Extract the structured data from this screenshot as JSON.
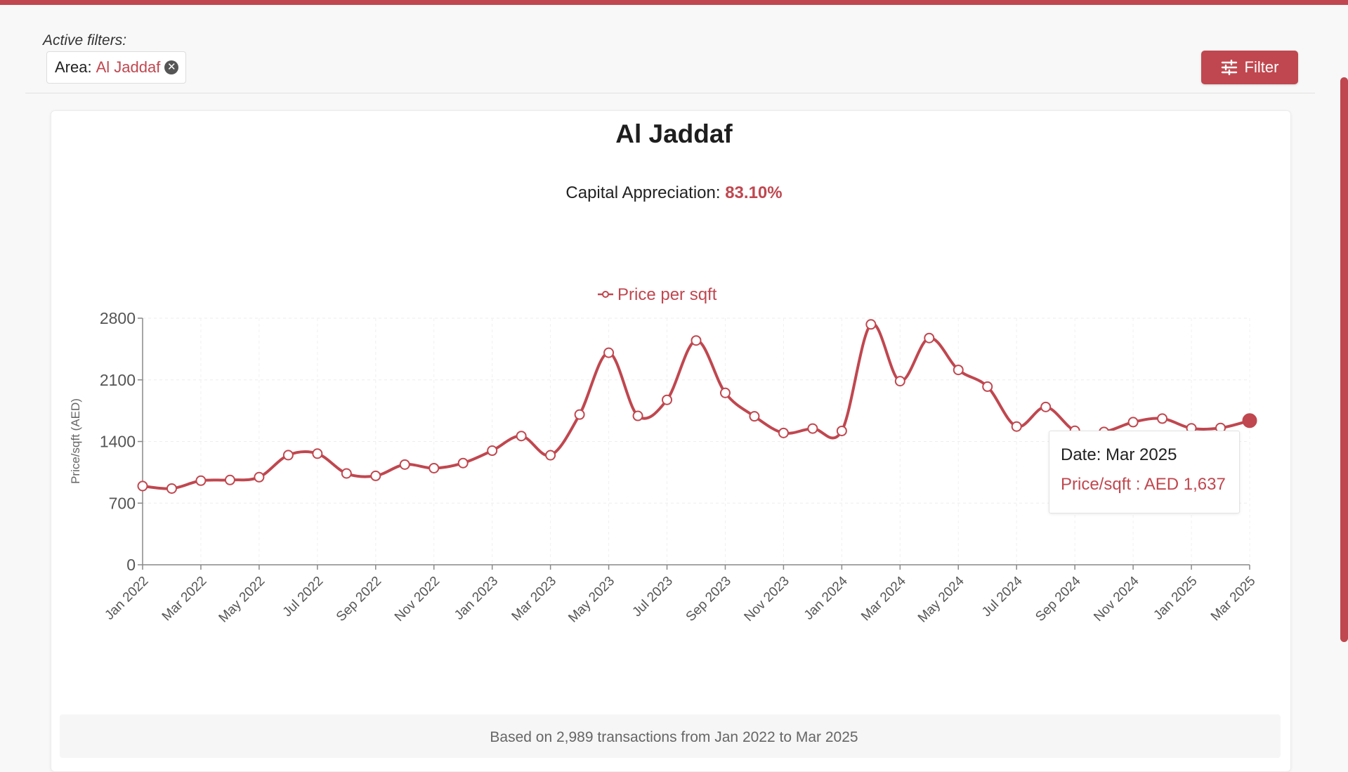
{
  "filters": {
    "label": "Active filters:",
    "chip": {
      "key": "Area:",
      "value": "Al Jaddaf",
      "remove_icon": "close-circle-icon"
    }
  },
  "filter_button": {
    "label": "Filter",
    "icon": "sliders-icon"
  },
  "heading": {
    "title": "Al Jaddaf",
    "appreciation_label": "Capital Appreciation:",
    "appreciation_value": "83.10%"
  },
  "colors": {
    "accent": "#c0474f"
  },
  "chart_data": {
    "type": "line",
    "title": "Al Jaddaf",
    "xlabel": "",
    "ylabel": "Price/sqft (AED)",
    "ylim": [
      0,
      2800
    ],
    "yticks": [
      0,
      700,
      1400,
      2100,
      2800
    ],
    "legend": "top-center",
    "grid": true,
    "x": [
      "Jan 2022",
      "Feb 2022",
      "Mar 2022",
      "Apr 2022",
      "May 2022",
      "Jun 2022",
      "Jul 2022",
      "Aug 2022",
      "Sep 2022",
      "Oct 2022",
      "Nov 2022",
      "Dec 2022",
      "Jan 2023",
      "Feb 2023",
      "Mar 2023",
      "Apr 2023",
      "May 2023",
      "Jun 2023",
      "Jul 2023",
      "Aug 2023",
      "Sep 2023",
      "Oct 2023",
      "Nov 2023",
      "Dec 2023",
      "Jan 2024",
      "Feb 2024",
      "Mar 2024",
      "Apr 2024",
      "May 2024",
      "Jun 2024",
      "Jul 2024",
      "Aug 2024",
      "Sep 2024",
      "Oct 2024",
      "Nov 2024",
      "Dec 2024",
      "Jan 2025",
      "Feb 2025",
      "Mar 2025"
    ],
    "x_tick_labels": [
      "Jan 2022",
      "Mar 2022",
      "May 2022",
      "Jul 2022",
      "Sep 2022",
      "Nov 2022",
      "Jan 2023",
      "Mar 2023",
      "May 2023",
      "Jul 2023",
      "Sep 2023",
      "Nov 2023",
      "Jan 2024",
      "Mar 2024",
      "May 2024",
      "Jul 2024",
      "Sep 2024",
      "Nov 2024",
      "Jan 2025",
      "Mar 2025"
    ],
    "series": [
      {
        "name": "Price per sqft",
        "color": "#c0474f",
        "values": [
          894,
          866,
          955,
          963,
          995,
          1245,
          1262,
          1037,
          1010,
          1138,
          1097,
          1155,
          1296,
          1462,
          1244,
          1706,
          2408,
          1691,
          1873,
          2547,
          1952,
          1686,
          1497,
          1547,
          1520,
          2730,
          2085,
          2575,
          2213,
          2023,
          1570,
          1792,
          1522,
          1509,
          1620,
          1660,
          1550,
          1554,
          1637
        ]
      }
    ],
    "highlight_index": 38
  },
  "tooltip": {
    "date_line": "Date: Mar 2025",
    "value_line": "Price/sqft : AED 1,637"
  },
  "footer": {
    "text": "Based on 2,989 transactions from Jan 2022 to Mar 2025"
  }
}
